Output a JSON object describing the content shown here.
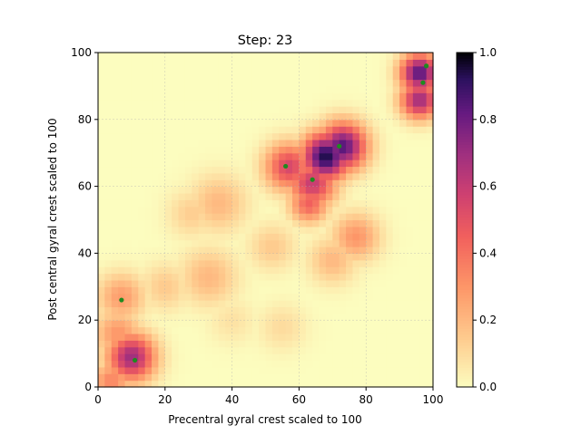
{
  "chart_data": {
    "type": "heatmap",
    "title": "Step: 23",
    "xlabel": "Precentral gyral crest scaled to 100",
    "ylabel": "Post central gyral crest scaled to 100",
    "xlim": [
      0,
      100
    ],
    "ylim": [
      0,
      100
    ],
    "xticks": [
      "0",
      "20",
      "40",
      "60",
      "80",
      "100"
    ],
    "yticks": [
      "0",
      "20",
      "40",
      "60",
      "80",
      "100"
    ],
    "colorbar": {
      "colormap": "magma_r",
      "range": [
        0.0,
        1.0
      ],
      "ticks": [
        "0.0",
        "0.2",
        "0.4",
        "0.6",
        "0.8",
        "1.0"
      ]
    },
    "grid": true,
    "density_peaks": [
      {
        "x": 10,
        "y": 9,
        "intensity": 0.7,
        "spread": 5
      },
      {
        "x": 6,
        "y": 16,
        "intensity": 0.3,
        "spread": 5
      },
      {
        "x": 7,
        "y": 27,
        "intensity": 0.28,
        "spread": 5
      },
      {
        "x": 4,
        "y": 2,
        "intensity": 0.35,
        "spread": 4
      },
      {
        "x": 33,
        "y": 33,
        "intensity": 0.2,
        "spread": 6
      },
      {
        "x": 20,
        "y": 30,
        "intensity": 0.15,
        "spread": 5
      },
      {
        "x": 36,
        "y": 55,
        "intensity": 0.2,
        "spread": 6
      },
      {
        "x": 28,
        "y": 52,
        "intensity": 0.14,
        "spread": 5
      },
      {
        "x": 57,
        "y": 66,
        "intensity": 0.55,
        "spread": 5
      },
      {
        "x": 64,
        "y": 61,
        "intensity": 0.6,
        "spread": 5
      },
      {
        "x": 63,
        "y": 55,
        "intensity": 0.45,
        "spread": 4
      },
      {
        "x": 68,
        "y": 69,
        "intensity": 0.95,
        "spread": 5
      },
      {
        "x": 73,
        "y": 72,
        "intensity": 0.85,
        "spread": 5
      },
      {
        "x": 77,
        "y": 45,
        "intensity": 0.3,
        "spread": 5
      },
      {
        "x": 70,
        "y": 38,
        "intensity": 0.2,
        "spread": 5
      },
      {
        "x": 52,
        "y": 42,
        "intensity": 0.15,
        "spread": 5
      },
      {
        "x": 96,
        "y": 94,
        "intensity": 0.85,
        "spread": 4
      },
      {
        "x": 96,
        "y": 86,
        "intensity": 0.7,
        "spread": 4
      },
      {
        "x": 55,
        "y": 18,
        "intensity": 0.1,
        "spread": 5
      },
      {
        "x": 40,
        "y": 20,
        "intensity": 0.08,
        "spread": 5
      }
    ],
    "points": [
      {
        "x": 7,
        "y": 26
      },
      {
        "x": 11,
        "y": 8
      },
      {
        "x": 56,
        "y": 66
      },
      {
        "x": 64,
        "y": 62
      },
      {
        "x": 72,
        "y": 72
      },
      {
        "x": 97,
        "y": 91
      },
      {
        "x": 98,
        "y": 96
      }
    ],
    "point_color": "#1f8a1f"
  }
}
